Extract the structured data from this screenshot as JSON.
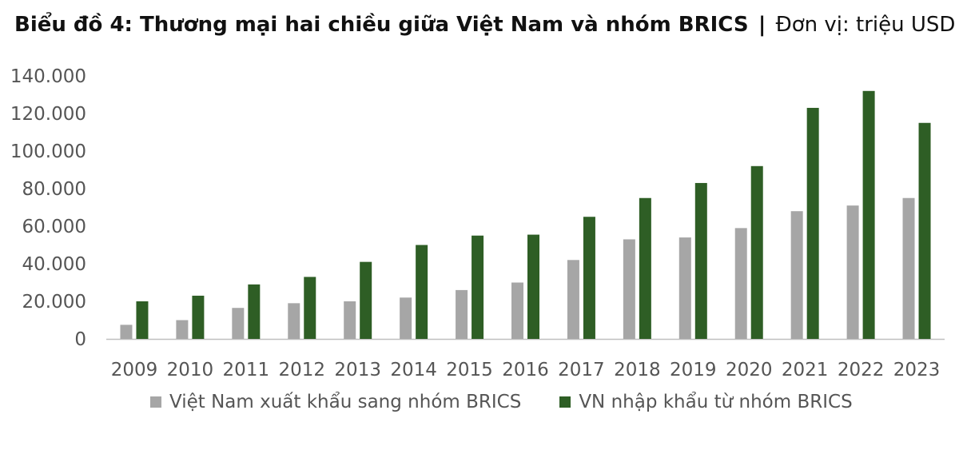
{
  "title": {
    "main": "Biểu đồ 4: Thương mại hai chiều giữa Việt Nam và nhóm BRICS",
    "separator": "|",
    "unit": "Đơn vị: triệu USD"
  },
  "colors": {
    "export": "#a6a6a6",
    "import": "#2e5e25",
    "axis": "#bfbfbf",
    "text": "#555555"
  },
  "chart_data": {
    "type": "bar",
    "categories": [
      "2009",
      "2010",
      "2011",
      "2012",
      "2013",
      "2014",
      "2015",
      "2016",
      "2017",
      "2018",
      "2019",
      "2020",
      "2021",
      "2022",
      "2023"
    ],
    "series": [
      {
        "name": "Việt Nam xuất khẩu sang nhóm BRICS",
        "values": [
          7500,
          10000,
          16500,
          19000,
          20000,
          22000,
          26000,
          30000,
          42000,
          53000,
          54000,
          59000,
          68000,
          71000,
          75000
        ]
      },
      {
        "name": "VN nhập khẩu từ nhóm BRICS",
        "values": [
          20000,
          23000,
          29000,
          33000,
          41000,
          50000,
          55000,
          55500,
          65000,
          75000,
          83000,
          92000,
          123000,
          132000,
          115000
        ]
      }
    ],
    "ylim": [
      0,
      140000
    ],
    "yticks": [
      0,
      20000,
      40000,
      60000,
      80000,
      100000,
      120000,
      140000
    ],
    "ytick_labels": [
      "0",
      "20.000",
      "40.000",
      "60.000",
      "80.000",
      "100.000",
      "120.000",
      "140.000"
    ],
    "grid": false,
    "legend_position": "bottom"
  }
}
